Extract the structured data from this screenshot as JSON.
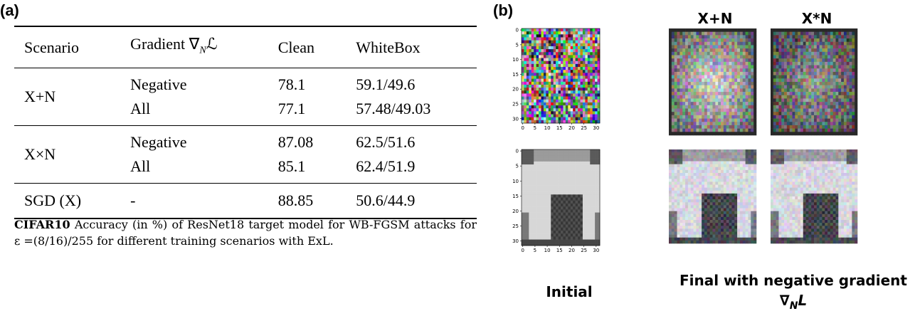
{
  "panel_a": {
    "label": "(a)",
    "table": {
      "header": {
        "scenario": "Scenario",
        "gradient": {
          "text": "Gradient ∇",
          "sub": "N",
          "after": "ℒ"
        },
        "clean": "Clean",
        "whitebox": "WhiteBox"
      },
      "groups": [
        {
          "scenario": "X+N",
          "rows": [
            [
              "Negative",
              "78.1",
              "59.1/49.6"
            ],
            [
              "All",
              "77.1",
              "57.48/49.03"
            ]
          ]
        },
        {
          "scenario": "X×N",
          "rows": [
            [
              "Negative",
              "87.08",
              "62.5/51.6"
            ],
            [
              "All",
              "85.1",
              "62.4/51.9"
            ]
          ]
        },
        {
          "scenario": "SGD (X)",
          "rows": [
            [
              "-",
              "88.85",
              "50.6/44.9"
            ]
          ]
        }
      ]
    },
    "caption": {
      "bold": "CIFAR10",
      "text": "Accuracy (in %) of ResNet18 target model for WB-FGSM attacks for ε =(8/16)/255 for different training scenarios with ExL."
    }
  },
  "panel_b": {
    "label": "(b)",
    "col_titles": [
      "X+N",
      "X*N"
    ],
    "initial_label": "Initial",
    "final_label": "Final with negative gradient",
    "final_symbol": {
      "text": "∇",
      "sub": "N",
      "after": "L"
    },
    "ticks": [
      0,
      5,
      10,
      15,
      20,
      25,
      30
    ]
  }
}
